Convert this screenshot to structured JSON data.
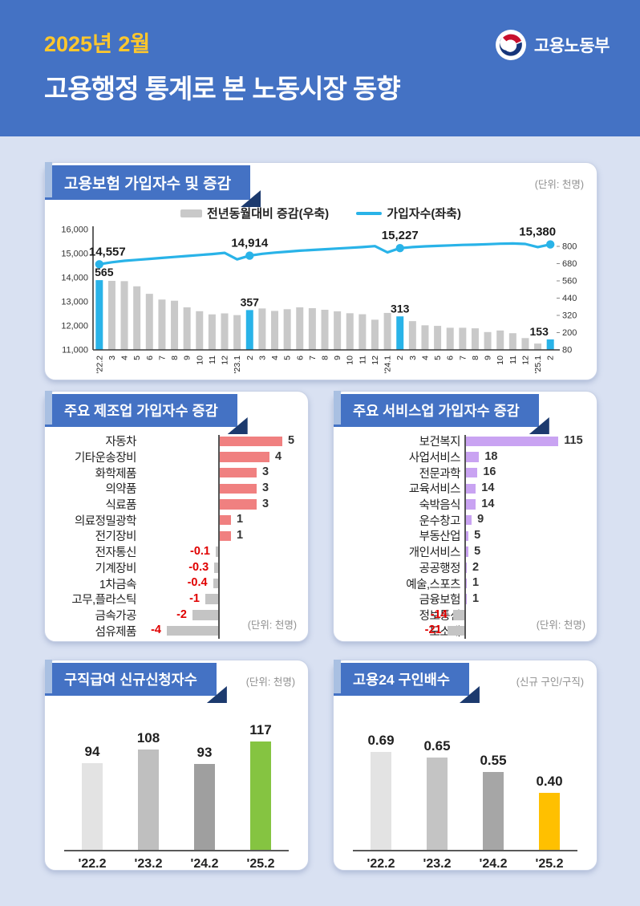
{
  "header": {
    "period": "2025년 2월",
    "title": "고용행정 통계로 본 노동시장 동향",
    "ministry": "고용노동부"
  },
  "cards": {
    "insurance": {
      "banner": "고용보험 가입자수 및 증감",
      "unit": "(단위: 천명)",
      "legend": [
        {
          "label": "전년동월대비 증감(우축)",
          "swatch": "bar"
        },
        {
          "label": "가입자수(좌축)",
          "swatch": "line"
        }
      ],
      "colors": {
        "bar": "#c9c9c9",
        "highlight": "#29b3e8",
        "line": "#29b3e8",
        "label": "#1a1a1a"
      },
      "chart_data": {
        "type": "bar+line",
        "x": [
          "'22.2",
          "3",
          "4",
          "5",
          "6",
          "7",
          "8",
          "9",
          "10",
          "11",
          "12",
          "'23.1",
          "2",
          "3",
          "4",
          "5",
          "6",
          "7",
          "8",
          "9",
          "10",
          "11",
          "12",
          "'24.1",
          "2",
          "3",
          "4",
          "5",
          "6",
          "7",
          "8",
          "9",
          "10",
          "11",
          "12",
          "'25.1",
          "2"
        ],
        "bars": {
          "name": "전년동월대비 증감(우축)",
          "axis": "right",
          "values": [
            565,
            560,
            558,
            522,
            470,
            430,
            422,
            376,
            349,
            327,
            334,
            322,
            357,
            368,
            351,
            363,
            376,
            370,
            359,
            348,
            335,
            328,
            290,
            337,
            313,
            280,
            251,
            247,
            234,
            234,
            230,
            204,
            215,
            196,
            162,
            124,
            153
          ],
          "highlight_indices": [
            0,
            12,
            24,
            36
          ],
          "labels": {
            "0": "565",
            "12": "357",
            "24": "313",
            "36": "153"
          }
        },
        "line": {
          "name": "가입자수(좌축)",
          "axis": "left",
          "values": [
            14557,
            14640,
            14700,
            14740,
            14780,
            14820,
            14860,
            14900,
            14940,
            14980,
            15030,
            14760,
            14914,
            14990,
            15040,
            15080,
            15120,
            15150,
            15180,
            15210,
            15240,
            15270,
            15310,
            15050,
            15227,
            15270,
            15300,
            15320,
            15340,
            15360,
            15370,
            15390,
            15410,
            15420,
            15400,
            15270,
            15380
          ],
          "labels": {
            "0": "14,557",
            "12": "14,914",
            "24": "15,227",
            "36": "15,380"
          }
        },
        "left_axis": {
          "min": 11000,
          "max": 16000,
          "tick_labels": [
            "16,000",
            "15,000",
            "14,000",
            "13,000",
            "12,000",
            "11,000"
          ]
        },
        "right_axis": {
          "min": 80,
          "max": 800,
          "tick_labels": [
            "800",
            "680",
            "560",
            "440",
            "320",
            "200",
            "80"
          ]
        }
      }
    },
    "manufacturing": {
      "banner": "주요 제조업 가입자수 증감",
      "unit": "(단위: 천명)",
      "colors": {
        "positive": "#f08080",
        "negative": "#c4c4c4",
        "positive_text": "#333333",
        "negative_text": "#e00000"
      },
      "chart_data": {
        "type": "bar",
        "orientation": "horizontal",
        "categories": [
          "자동차",
          "기타운송장비",
          "화학제품",
          "의약품",
          "식료품",
          "의료정밀광학",
          "전기장비",
          "전자통신",
          "기계장비",
          "1차금속",
          "고무,플라스틱",
          "금속가공",
          "섬유제품"
        ],
        "values": [
          5,
          4,
          3,
          3,
          3,
          1,
          1,
          -0.1,
          -0.3,
          -0.4,
          -1,
          -2,
          -4
        ],
        "value_labels": [
          "5",
          "4",
          "3",
          "3",
          "3",
          "1",
          "1",
          "-0.1",
          "-0.3",
          "-0.4",
          "-1",
          "-2",
          "-4"
        ]
      }
    },
    "services": {
      "banner": "주요 서비스업 가입자수 증감",
      "unit": "(단위: 천명)",
      "colors": {
        "positive": "#c9a3f2",
        "negative": "#c4c4c4",
        "positive_text": "#333333",
        "negative_text": "#e00000"
      },
      "chart_data": {
        "type": "bar",
        "orientation": "horizontal",
        "categories": [
          "보건복지",
          "사업서비스",
          "전문과학",
          "교육서비스",
          "숙박음식",
          "운수창고",
          "부동산업",
          "개인서비스",
          "공공행정",
          "예술,스포츠",
          "금융보험",
          "정보통신",
          "도소매"
        ],
        "values": [
          115,
          18,
          16,
          14,
          14,
          9,
          5,
          5,
          2,
          1,
          1,
          -14,
          -21
        ],
        "value_labels": [
          "115",
          "18",
          "16",
          "14",
          "14",
          "9",
          "5",
          "5",
          "2",
          "1",
          "1",
          "-14",
          "-21"
        ]
      }
    },
    "claims": {
      "banner": "구직급여 신규신청자수",
      "unit": "(단위: 천명)",
      "chart_data": {
        "type": "bar",
        "categories": [
          "'22.2",
          "'23.2",
          "'24.2",
          "'25.2"
        ],
        "values": [
          94,
          108,
          93,
          117
        ],
        "value_labels": [
          "94",
          "108",
          "93",
          "117"
        ],
        "colors": [
          "#e3e3e3",
          "#bfbfbf",
          "#9f9f9f",
          "#85c441"
        ],
        "ylim": [
          0,
          140
        ]
      }
    },
    "ratio": {
      "banner": "고용24 구인배수",
      "unit": "(신규 구인/구직)",
      "chart_data": {
        "type": "bar",
        "categories": [
          "'22.2",
          "'23.2",
          "'24.2",
          "'25.2"
        ],
        "values": [
          0.69,
          0.65,
          0.55,
          0.4
        ],
        "value_labels": [
          "0.69",
          "0.65",
          "0.55",
          "0.40"
        ],
        "colors": [
          "#e3e3e3",
          "#c4c4c4",
          "#a6a6a6",
          "#ffc000"
        ],
        "ylim": [
          0,
          0.8
        ]
      }
    }
  }
}
